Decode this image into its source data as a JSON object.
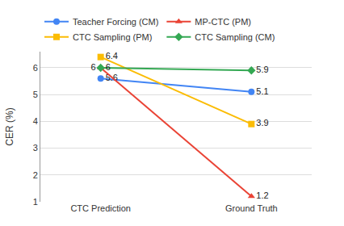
{
  "chart_data": {
    "type": "line",
    "y_label": "CER (%)",
    "categories": [
      "CTC Prediction",
      "Ground Truth"
    ],
    "series": [
      {
        "name": "Teacher Forcing (CM)",
        "color": "#4285f4",
        "marker": "circle",
        "values": [
          5.6,
          5.1
        ]
      },
      {
        "name": "MP-CTC (PM)",
        "color": "#ea4335",
        "marker": "triangle-up",
        "values": [
          6,
          1.2
        ]
      },
      {
        "name": "CTC Sampling (PM)",
        "color": "#fbbc04",
        "marker": "square",
        "values": [
          6.4,
          3.9
        ]
      },
      {
        "name": "CTC Sampling (CM)",
        "color": "#34a853",
        "marker": "diamond",
        "values": [
          6,
          5.9
        ]
      }
    ],
    "ylim": [
      1,
      6.6
    ],
    "yticks": [
      1,
      2,
      3,
      4,
      5,
      6
    ],
    "grid": true,
    "legend": "top",
    "data_labels": true
  }
}
